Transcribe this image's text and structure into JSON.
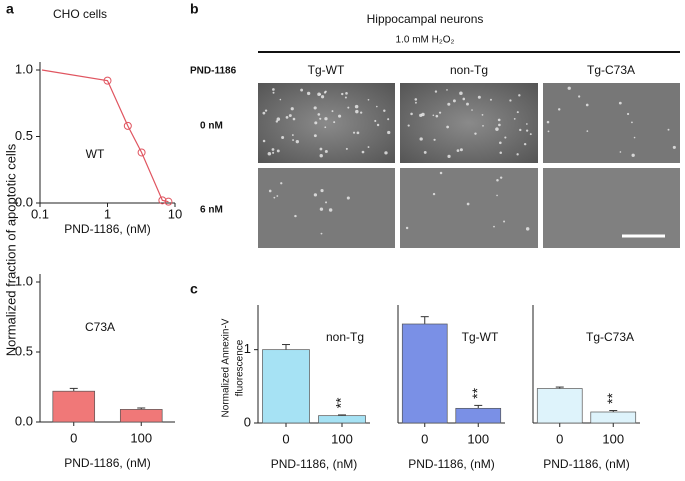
{
  "figure": {
    "panels": [
      "a",
      "b",
      "c"
    ],
    "ylabel_a": "Normalized fraction of apoptotic cells",
    "ylabel_c": [
      "Normalized Annexin-V",
      "fluorescence"
    ],
    "images": {
      "title": "Hippocampal neurons",
      "treatment": "1.0 mM H₂O₂",
      "drug": "PND-1186",
      "columns": [
        "Tg-WT",
        "non-Tg",
        "Tg-C73A"
      ],
      "rows": [
        "0 nM",
        "6 nM"
      ]
    }
  },
  "chart_data": [
    {
      "type": "line",
      "title": "CHO cells",
      "label": "WT",
      "xlabel": "PND-1186, (nM)",
      "color": "#e05560",
      "x": [
        1.0,
        2.0,
        3.2,
        6.5,
        8.0
      ],
      "values": [
        0.92,
        0.58,
        0.38,
        0.02,
        0.01
      ],
      "xlog": true,
      "xlim": [
        0.1,
        10
      ],
      "xticks": [
        0.1,
        1,
        10
      ],
      "ylim": [
        0,
        1
      ],
      "yticks": [
        {
          "value": 0,
          "label": "0.0"
        },
        {
          "value": 0.5,
          "label": "0.5"
        },
        {
          "value": 1,
          "label": "1.0"
        }
      ]
    },
    {
      "type": "bar",
      "label": "C73A",
      "xlabel": "PND-1186, (nM)",
      "color": "#f07878",
      "categories": [
        "0",
        "100"
      ],
      "values": [
        0.22,
        0.09
      ],
      "errors": [
        0.02,
        0.01
      ],
      "ylim": [
        0,
        1
      ],
      "yticks": [
        {
          "value": 0,
          "label": "0.0"
        },
        {
          "value": 0.5,
          "label": "0.5"
        },
        {
          "value": 1,
          "label": "1.0"
        }
      ]
    },
    {
      "type": "bar",
      "label": "non-Tg",
      "xlabel": "PND-1186, (nM)",
      "color": "#a6e2f4",
      "annotation": "**",
      "categories": [
        "0",
        "100"
      ],
      "values": [
        1.0,
        0.1
      ],
      "errors": [
        0.07,
        0.01
      ],
      "ylim": [
        0,
        1.5
      ],
      "yticks": [
        0,
        1
      ]
    },
    {
      "type": "bar",
      "label": "Tg-WT",
      "xlabel": "PND-1186, (nM)",
      "color": "#7a90e6",
      "annotation": "**",
      "categories": [
        "0",
        "100"
      ],
      "values": [
        1.35,
        0.2
      ],
      "errors": [
        0.1,
        0.04
      ],
      "ylim": [
        0,
        1.5
      ]
    },
    {
      "type": "bar",
      "label": "Tg-C73A",
      "xlabel": "PND-1186, (nM)",
      "color": "#def3fb",
      "annotation": "**",
      "categories": [
        "0",
        "100"
      ],
      "values": [
        0.47,
        0.15
      ],
      "errors": [
        0.02,
        0.02
      ],
      "ylim": [
        0,
        1.5
      ]
    }
  ]
}
